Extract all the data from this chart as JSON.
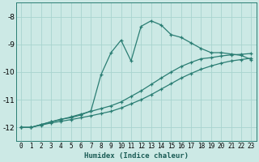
{
  "xlabel": "Humidex (Indice chaleur)",
  "bg_color": "#cce9e5",
  "grid_color": "#a8d4cf",
  "line_color": "#2a7d73",
  "xlim": [
    -0.5,
    23.5
  ],
  "ylim": [
    -12.5,
    -7.5
  ],
  "yticks": [
    -12,
    -11,
    -10,
    -9,
    -8
  ],
  "xticks": [
    0,
    1,
    2,
    3,
    4,
    5,
    6,
    7,
    8,
    9,
    10,
    11,
    12,
    13,
    14,
    15,
    16,
    17,
    18,
    19,
    20,
    21,
    22,
    23
  ],
  "series": [
    {
      "x": [
        0,
        1,
        2,
        3,
        4,
        5,
        6,
        7,
        8,
        9,
        10,
        11,
        12,
        13,
        14,
        15,
        16,
        17,
        18,
        19,
        20,
        21,
        22,
        23
      ],
      "y": [
        -12.0,
        -12.0,
        -11.9,
        -11.8,
        -11.7,
        -11.65,
        -11.55,
        -11.4,
        -10.1,
        -9.3,
        -8.85,
        -9.6,
        -8.35,
        -8.15,
        -8.3,
        -8.65,
        -8.75,
        -8.95,
        -9.15,
        -9.3,
        -9.3,
        -9.35,
        -9.4,
        -9.55
      ]
    },
    {
      "x": [
        0,
        1,
        2,
        3,
        4,
        5,
        6,
        7,
        8,
        9,
        10,
        11,
        12,
        13,
        14,
        15,
        16,
        17,
        18,
        19,
        20,
        21,
        22,
        23
      ],
      "y": [
        -12.0,
        -12.0,
        -11.9,
        -11.8,
        -11.72,
        -11.62,
        -11.52,
        -11.42,
        -11.32,
        -11.22,
        -11.08,
        -10.88,
        -10.68,
        -10.45,
        -10.22,
        -10.0,
        -9.8,
        -9.65,
        -9.52,
        -9.48,
        -9.42,
        -9.38,
        -9.36,
        -9.33
      ]
    },
    {
      "x": [
        0,
        1,
        2,
        3,
        4,
        5,
        6,
        7,
        8,
        9,
        10,
        11,
        12,
        13,
        14,
        15,
        16,
        17,
        18,
        19,
        20,
        21,
        22,
        23
      ],
      "y": [
        -12.0,
        -12.0,
        -11.92,
        -11.84,
        -11.78,
        -11.72,
        -11.65,
        -11.58,
        -11.5,
        -11.42,
        -11.3,
        -11.15,
        -11.0,
        -10.82,
        -10.62,
        -10.42,
        -10.22,
        -10.05,
        -9.9,
        -9.78,
        -9.68,
        -9.6,
        -9.55,
        -9.5
      ]
    }
  ]
}
